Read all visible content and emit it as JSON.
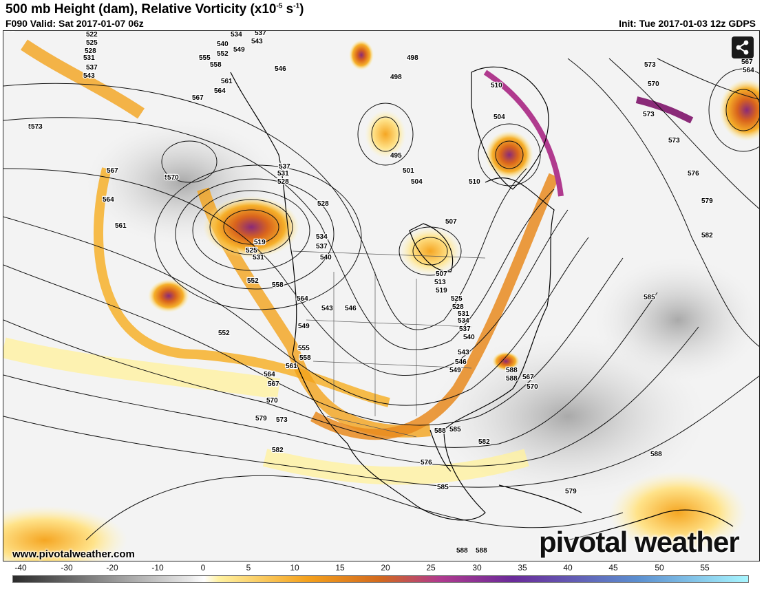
{
  "header": {
    "title_main": "500 mb Height (dam), Relative Vorticity (x10",
    "title_exp": "-5",
    "title_unit": " s",
    "title_exp2": "-1",
    "title_close": ")",
    "valid": "F090 Valid: Sat 2017-01-07 06z",
    "init": "Init: Tue 2017-01-03 12z GDPS"
  },
  "footer": {
    "url": "www.pivotalweather.com",
    "brand": "pivotal weather"
  },
  "share": {
    "icon": "share-icon"
  },
  "colorbar": {
    "ticks": [
      "-40",
      "-30",
      "-20",
      "-10",
      "0",
      "5",
      "10",
      "15",
      "20",
      "25",
      "30",
      "35",
      "40",
      "45",
      "50",
      "55"
    ],
    "tick_values": [
      -40,
      -30,
      -20,
      -10,
      0,
      5,
      10,
      15,
      20,
      25,
      30,
      35,
      40,
      45,
      50,
      55
    ],
    "colors": {
      "negative_dark": "#2b2b2b",
      "negative_light": "#e8e8e8",
      "zero": "#ffffff",
      "yellow": "#fff1a0",
      "orange": "#f4a11d",
      "dark_orange": "#d2691e",
      "magenta": "#b03a8e",
      "purple": "#6a2b9a",
      "blue": "#5b8fd0",
      "cyan": "#a8f6ff"
    }
  },
  "contour_labels": [
    "522",
    "525",
    "528",
    "531",
    "537",
    "543",
    "534",
    "537",
    "540",
    "543",
    "549",
    "552",
    "555",
    "558",
    "561",
    "564",
    "567",
    "546",
    "498",
    "498",
    "510",
    "567",
    "564",
    "573",
    "573",
    "570",
    "573",
    "576",
    "579",
    "582",
    "585",
    "588",
    "537",
    "531",
    "528",
    "528",
    "501",
    "504",
    "495",
    "507",
    "504",
    "510",
    "567",
    "564",
    "561",
    "570",
    "573",
    "519",
    "525",
    "531",
    "534",
    "537",
    "540",
    "507",
    "513",
    "519",
    "525",
    "528",
    "531",
    "534",
    "537",
    "540",
    "543",
    "546",
    "549",
    "552",
    "558",
    "564",
    "543",
    "546",
    "549",
    "552",
    "555",
    "558",
    "561",
    "564",
    "567",
    "570",
    "573",
    "576",
    "579",
    "582",
    "585",
    "585",
    "588",
    "582",
    "585",
    "579",
    "588",
    "588",
    "588",
    "588",
    "588",
    "567",
    "570",
    "573",
    "576"
  ]
}
